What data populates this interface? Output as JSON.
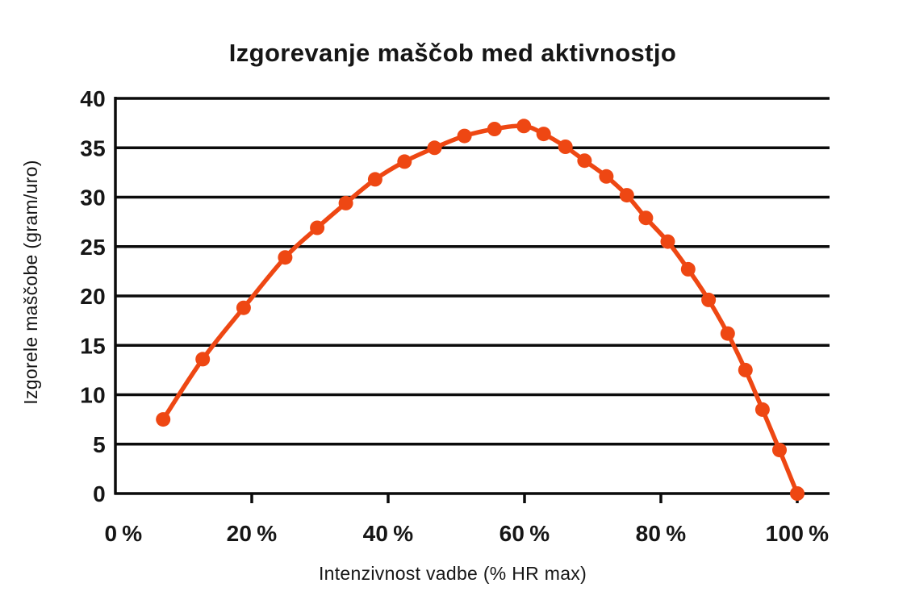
{
  "chart_data": {
    "type": "line",
    "title": "Izgorevanje maščob med aktivnostjo",
    "xlabel": "Intenzivnost vadbe (% HR max)",
    "ylabel": "Izgorele maščobe (gram/uro)",
    "xlim": [
      0,
      100
    ],
    "ylim": [
      0,
      40
    ],
    "grid": "horizontal",
    "legend": "none",
    "xticks": {
      "values": [
        0,
        20,
        40,
        60,
        80,
        100
      ],
      "labels": [
        "0 %",
        "20 %",
        "40 %",
        "60 %",
        "80 %",
        "100 %"
      ]
    },
    "yticks": {
      "values": [
        0,
        5,
        10,
        15,
        20,
        25,
        30,
        35,
        40
      ],
      "labels": [
        "0",
        "5",
        "10",
        "15",
        "20",
        "25",
        "30",
        "35",
        "40"
      ]
    },
    "colors": {
      "line": "#EE4713",
      "marker": "#EE4713",
      "grid": "#0b0b0b",
      "text": "#161616",
      "background": "#ffffff"
    },
    "series": [
      {
        "name": "Izgorele maščobe (gram/uro)",
        "marker": "circle",
        "x": [
          7,
          12.8,
          18.8,
          24.9,
          29.6,
          33.8,
          38.1,
          42.4,
          46.8,
          51.2,
          55.6,
          59.9,
          62.8,
          66.0,
          68.8,
          72.0,
          75.0,
          77.8,
          81.0,
          84.0,
          87.0,
          89.8,
          92.4,
          94.9,
          97.4,
          100
        ],
        "y": [
          7.5,
          13.6,
          18.8,
          23.9,
          26.9,
          29.4,
          31.8,
          33.6,
          35.0,
          36.2,
          36.9,
          37.2,
          36.4,
          35.1,
          33.7,
          32.1,
          30.2,
          27.9,
          25.5,
          22.7,
          19.6,
          16.2,
          12.5,
          8.5,
          4.4,
          0
        ]
      }
    ]
  }
}
